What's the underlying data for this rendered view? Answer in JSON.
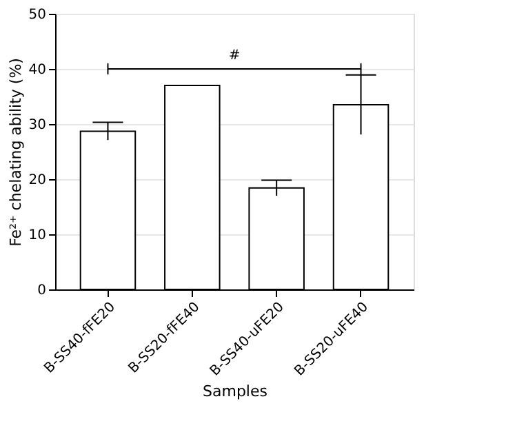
{
  "chart_data": {
    "type": "bar",
    "xlabel": "Samples",
    "ylabel": "Fe²⁺ chelating ability (%)",
    "categories": [
      "B-SS40-fFE20",
      "B-SS20-fFE40",
      "B-SS40-uFE20",
      "B-SS20-uFE40"
    ],
    "values": [
      28.7,
      37.0,
      18.4,
      33.5
    ],
    "errors": [
      1.6,
      null,
      1.4,
      5.4
    ],
    "color": "#ffffff",
    "ylim": [
      0,
      50
    ],
    "yticks": [
      0,
      10,
      20,
      30,
      40,
      50
    ],
    "grid": "y",
    "annotations": [
      "#"
    ]
  }
}
